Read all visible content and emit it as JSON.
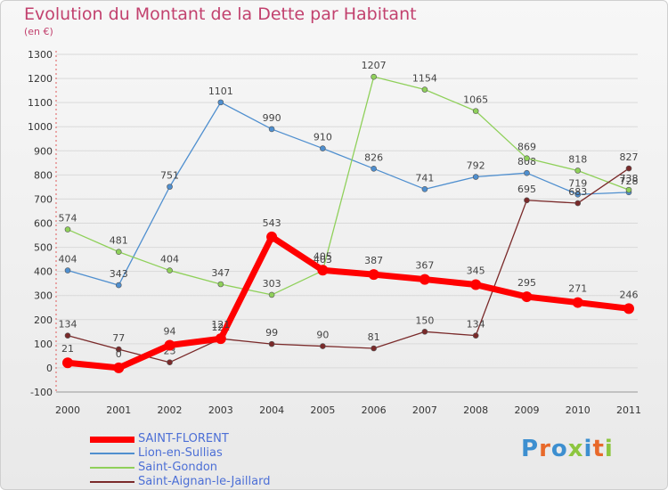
{
  "title": "Evolution du Montant de la Dette par Habitant",
  "subtitle": "(en €)",
  "logo": {
    "text": "Proxiti",
    "letter_colors": [
      "#3d8fd0",
      "#e8692a",
      "#3d8fd0",
      "#8dc63f",
      "#3d8fd0",
      "#e8692a",
      "#8dc63f"
    ]
  },
  "chart_data": {
    "type": "line",
    "x": [
      "2000",
      "2001",
      "2002",
      "2003",
      "2004",
      "2005",
      "2006",
      "2007",
      "2008",
      "2009",
      "2010",
      "2011"
    ],
    "ylim": [
      -100,
      1300
    ],
    "yticks": [
      -100,
      0,
      100,
      200,
      300,
      400,
      500,
      600,
      700,
      800,
      900,
      1000,
      1100,
      1200,
      1300
    ],
    "grid": true,
    "legend_position": "bottom-left",
    "series": [
      {
        "name": "Lion-en-Sullias",
        "color": "#4f8fcf",
        "values": [
          404,
          343,
          751,
          1101,
          990,
          910,
          826,
          741,
          792,
          808,
          719,
          728
        ]
      },
      {
        "name": "Saint-Gondon",
        "color": "#8fd05a",
        "values": [
          574,
          481,
          404,
          347,
          303,
          403,
          1207,
          1154,
          1065,
          869,
          818,
          738
        ]
      },
      {
        "name": "Saint-Aignan-le-Jaillard",
        "color": "#7a2a2a",
        "values": [
          134,
          77,
          23,
          121,
          99,
          90,
          81,
          150,
          134,
          695,
          683,
          827
        ]
      },
      {
        "name": "SAINT-FLORENT",
        "color": "#ff0000",
        "values": [
          21,
          0,
          94,
          121,
          543,
          405,
          387,
          367,
          345,
          295,
          271,
          246
        ]
      }
    ]
  }
}
